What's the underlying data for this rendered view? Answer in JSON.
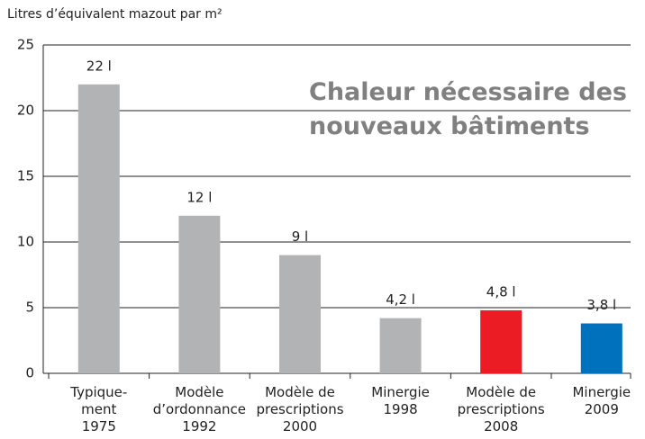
{
  "chart_data": {
    "type": "bar",
    "title": "Chaleur nécessaire des\nnouveaux bâtiments",
    "y_label": "Litres d’équivalent mazout par m²",
    "categories": [
      "Typique-\nment\n1975",
      "Modèle\nd’ordonnance\n1992",
      "Modèle de\nprescriptions\n2000",
      "Minergie\n1998",
      "Modèle de\nprescriptions\n2008",
      "Minergie\n2009"
    ],
    "values": [
      22,
      12,
      9,
      4.2,
      4.8,
      3.8
    ],
    "value_labels": [
      "22 l",
      "12 l",
      "9 l",
      "4,2 l",
      "4,8 l",
      "3,8 l"
    ],
    "colors": [
      "#b2b3b5",
      "#b2b3b5",
      "#b2b3b5",
      "#b2b3b5",
      "#ec1c24",
      "#0071bc"
    ],
    "ylim": [
      0,
      25
    ],
    "yticks": [
      0,
      5,
      10,
      15,
      20,
      25
    ],
    "grid": true
  }
}
